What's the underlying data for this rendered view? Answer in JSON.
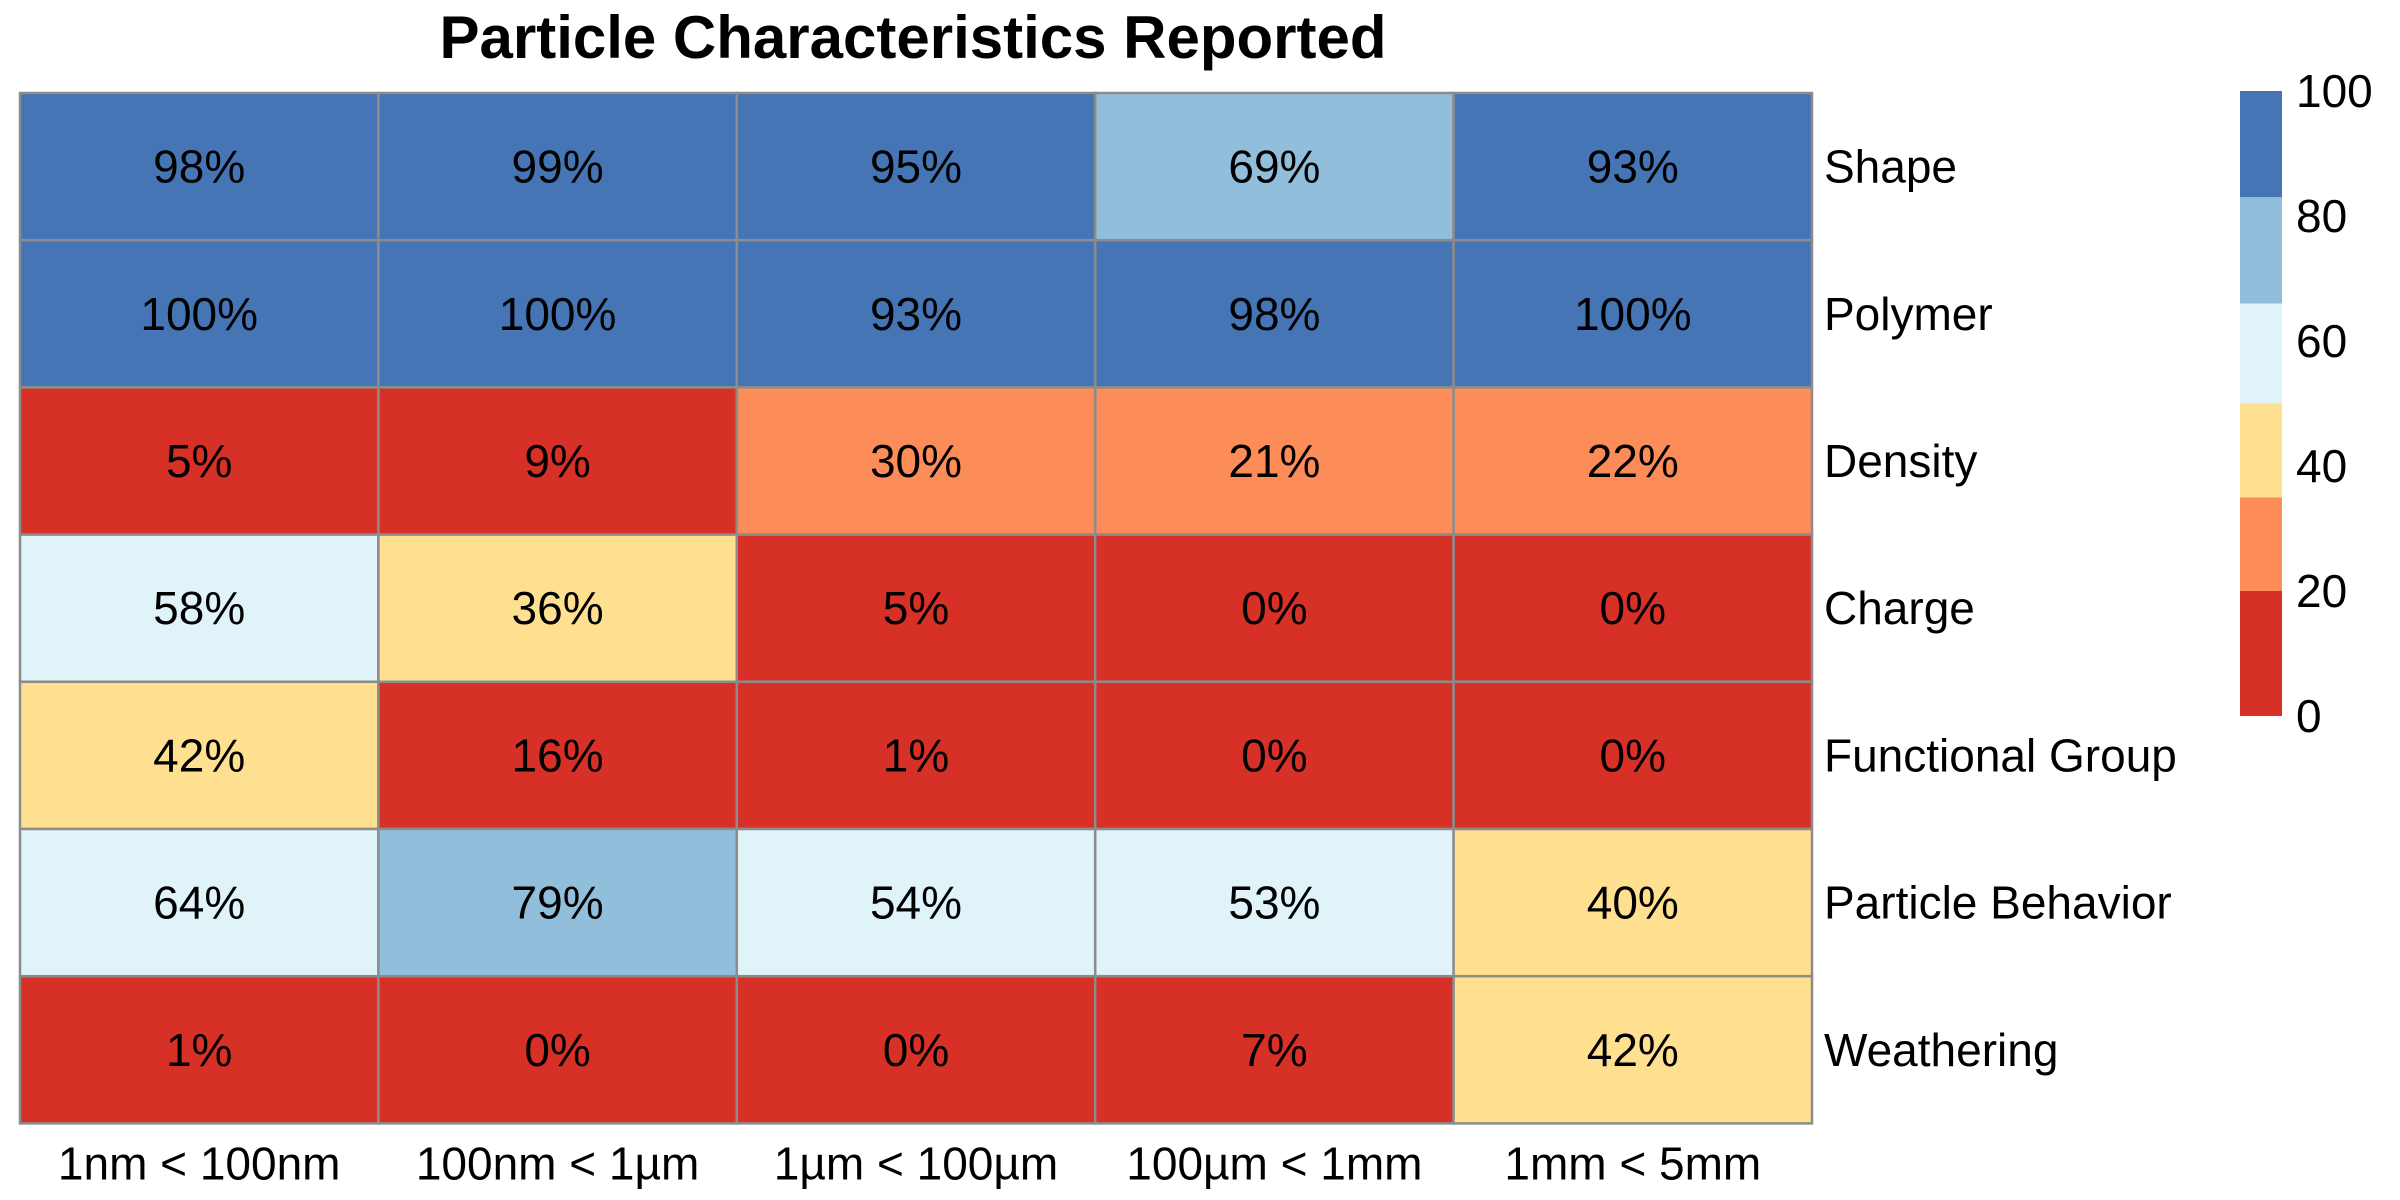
{
  "chart_data": {
    "type": "heatmap",
    "title": "Particle Characteristics Reported",
    "columns": [
      "1nm < 100nm",
      "100nm < 1µm",
      "1µm < 100µm",
      "100µm < 1mm",
      "1mm < 5mm"
    ],
    "rows": [
      "Shape",
      "Polymer",
      "Density",
      "Charge",
      "Functional Group",
      "Particle Behavior",
      "Weathering"
    ],
    "values": [
      [
        98,
        99,
        95,
        69,
        93
      ],
      [
        100,
        100,
        93,
        98,
        100
      ],
      [
        5,
        9,
        30,
        21,
        22
      ],
      [
        58,
        36,
        5,
        0,
        0
      ],
      [
        42,
        16,
        1,
        0,
        0
      ],
      [
        64,
        79,
        54,
        53,
        40
      ],
      [
        1,
        0,
        0,
        7,
        42
      ]
    ],
    "cell_labels": [
      [
        "98%",
        "99%",
        "95%",
        "69%",
        "93%"
      ],
      [
        "100%",
        "100%",
        "93%",
        "98%",
        "100%"
      ],
      [
        "5%",
        "9%",
        "30%",
        "21%",
        "22%"
      ],
      [
        "58%",
        "36%",
        "5%",
        "0%",
        "0%"
      ],
      [
        "42%",
        "16%",
        "1%",
        "0%",
        "0%"
      ],
      [
        "64%",
        "79%",
        "54%",
        "53%",
        "40%"
      ],
      [
        "1%",
        "0%",
        "0%",
        "7%",
        "42%"
      ]
    ],
    "color_scale": {
      "range": [
        0,
        100
      ],
      "bins": [
        {
          "from": 0,
          "to": 20,
          "color": "#d73027"
        },
        {
          "from": 20,
          "to": 35,
          "color": "#fc8d59"
        },
        {
          "from": 35,
          "to": 50,
          "color": "#fee090"
        },
        {
          "from": 50,
          "to": 66,
          "color": "#e0f3f8"
        },
        {
          "from": 66,
          "to": 83,
          "color": "#91bfdb"
        },
        {
          "from": 83,
          "to": 100,
          "color": "#4575b4"
        }
      ],
      "tick_labels": [
        "100",
        "80",
        "60",
        "40",
        "20",
        "0"
      ],
      "tick_values": [
        100,
        80,
        60,
        40,
        20,
        0
      ]
    },
    "grid_color": "#8c8c8c",
    "legend_position": "right"
  }
}
